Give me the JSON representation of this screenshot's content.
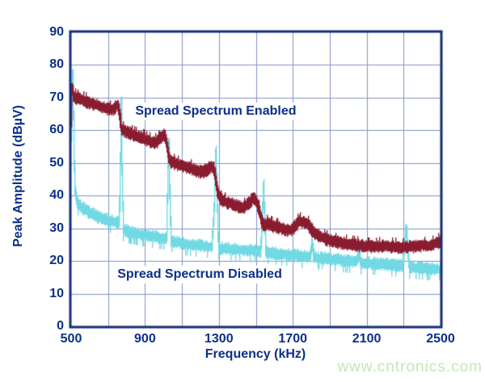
{
  "figure": {
    "watermark": {
      "text": "www.cntronics.com",
      "color": "#c3e6b3"
    }
  },
  "chart_data": {
    "type": "line",
    "title": "",
    "xlabel": "Frequency (kHz)",
    "ylabel": "Peak Amplitude (dBµV)",
    "xlim": [
      500,
      2500
    ],
    "ylim": [
      0,
      90
    ],
    "x_ticks": [
      500,
      900,
      1300,
      1700,
      2100,
      2500
    ],
    "y_ticks": [
      0,
      10,
      20,
      30,
      40,
      50,
      60,
      70,
      80,
      90
    ],
    "x_grid_step": 200,
    "y_grid_step": 10,
    "grid": true,
    "legend_position": "inline-annotations",
    "colors": {
      "background": "#ffffff",
      "axis_border": "#162d75",
      "gridline": "#8292c8",
      "tick_text": "#0c2f88"
    },
    "annotations": [
      {
        "text": "Spread Spectrum Enabled",
        "x_kHz": 1283,
        "y_dB": 65.8
      },
      {
        "text": "Spread Spectrum Disabled",
        "x_kHz": 1196,
        "y_dB": 15.8
      }
    ],
    "series": [
      {
        "name": "Spread Spectrum Enabled",
        "color": "#8a1c30",
        "band_half_dB": 1.15,
        "noise_dB": 1.0,
        "points": [
          [
            500,
            63
          ],
          [
            503,
            70.5
          ],
          [
            506,
            76.5
          ],
          [
            509,
            72
          ],
          [
            513,
            70.3
          ],
          [
            525,
            70
          ],
          [
            555,
            69.4
          ],
          [
            595,
            68.5
          ],
          [
            635,
            67.7
          ],
          [
            675,
            67
          ],
          [
            712,
            66.4
          ],
          [
            733,
            66.7
          ],
          [
            747,
            67.8
          ],
          [
            756,
            67.3
          ],
          [
            762,
            65.5
          ],
          [
            767,
            62.5
          ],
          [
            773,
            60.3
          ],
          [
            790,
            59.7
          ],
          [
            818,
            59.2
          ],
          [
            846,
            58.4
          ],
          [
            878,
            57.9
          ],
          [
            912,
            56.9
          ],
          [
            942,
            56.2
          ],
          [
            966,
            56.4
          ],
          [
            983,
            57.7
          ],
          [
            998,
            58.5
          ],
          [
            1008,
            58.1
          ],
          [
            1016,
            56.6
          ],
          [
            1023,
            53.8
          ],
          [
            1031,
            51.2
          ],
          [
            1042,
            50.3
          ],
          [
            1064,
            49.8
          ],
          [
            1100,
            49.2
          ],
          [
            1138,
            48.5
          ],
          [
            1176,
            47.7
          ],
          [
            1212,
            47.2
          ],
          [
            1238,
            48.1
          ],
          [
            1256,
            48.9
          ],
          [
            1270,
            48.5
          ],
          [
            1280,
            46.2
          ],
          [
            1288,
            42.8
          ],
          [
            1296,
            40.3
          ],
          [
            1308,
            38.9
          ],
          [
            1338,
            38.1
          ],
          [
            1378,
            37.3
          ],
          [
            1418,
            36.4
          ],
          [
            1443,
            36.6
          ],
          [
            1466,
            38.1
          ],
          [
            1486,
            39.2
          ],
          [
            1500,
            38.6
          ],
          [
            1511,
            37
          ],
          [
            1521,
            34.6
          ],
          [
            1533,
            32
          ],
          [
            1546,
            30.9
          ],
          [
            1563,
            31.5
          ],
          [
            1588,
            30.8
          ],
          [
            1622,
            30.2
          ],
          [
            1656,
            29.7
          ],
          [
            1690,
            29.4
          ],
          [
            1712,
            30.7
          ],
          [
            1736,
            32.1
          ],
          [
            1760,
            32
          ],
          [
            1780,
            31.3
          ],
          [
            1796,
            30.1
          ],
          [
            1814,
            28.7
          ],
          [
            1836,
            28
          ],
          [
            1862,
            27
          ],
          [
            1892,
            26.4
          ],
          [
            1928,
            25.9
          ],
          [
            1968,
            25.5
          ],
          [
            2008,
            25.1
          ],
          [
            2052,
            24.8
          ],
          [
            2098,
            24.5
          ],
          [
            2148,
            24.4
          ],
          [
            2198,
            24.7
          ],
          [
            2248,
            24.4
          ],
          [
            2298,
            24.1
          ],
          [
            2348,
            24.4
          ],
          [
            2398,
            24.8
          ],
          [
            2442,
            24.6
          ],
          [
            2472,
            25.4
          ],
          [
            2500,
            25.9
          ]
        ]
      },
      {
        "name": "Spread Spectrum Disabled",
        "color": "#70d9e3",
        "band_half_dB": 1.05,
        "noise_dB": 1.1,
        "points": [
          [
            500,
            58
          ],
          [
            504,
            68
          ],
          [
            508,
            79
          ],
          [
            512,
            70
          ],
          [
            516,
            52
          ],
          [
            521,
            42
          ],
          [
            528,
            39
          ],
          [
            540,
            37.5
          ],
          [
            565,
            36
          ],
          [
            600,
            34.8
          ],
          [
            645,
            33.4
          ],
          [
            690,
            32.6
          ],
          [
            730,
            32
          ],
          [
            758,
            31.6
          ],
          [
            765,
            42
          ],
          [
            771,
            70
          ],
          [
            777,
            42
          ],
          [
            784,
            29.6
          ],
          [
            805,
            29.1
          ],
          [
            850,
            28.5
          ],
          [
            900,
            27.9
          ],
          [
            950,
            27.4
          ],
          [
            1005,
            26.9
          ],
          [
            1016,
            26.8
          ],
          [
            1022,
            42
          ],
          [
            1028,
            61
          ],
          [
            1034,
            42
          ],
          [
            1041,
            26.1
          ],
          [
            1085,
            25.5
          ],
          [
            1145,
            25
          ],
          [
            1205,
            24.6
          ],
          [
            1262,
            24.3
          ],
          [
            1276,
            38
          ],
          [
            1284,
            54.5
          ],
          [
            1291,
            38
          ],
          [
            1298,
            23.9
          ],
          [
            1348,
            23.7
          ],
          [
            1415,
            23.4
          ],
          [
            1478,
            23.1
          ],
          [
            1526,
            22.9
          ],
          [
            1535,
            33
          ],
          [
            1541,
            44
          ],
          [
            1548,
            33
          ],
          [
            1555,
            22.5
          ],
          [
            1598,
            22.3
          ],
          [
            1645,
            22
          ],
          [
            1698,
            21.8
          ],
          [
            1748,
            21.5
          ],
          [
            1795,
            21.3
          ],
          [
            1805,
            26
          ],
          [
            1814,
            21.1
          ],
          [
            1852,
            20.9
          ],
          [
            1902,
            20.5
          ],
          [
            1958,
            20.2
          ],
          [
            2015,
            19.9
          ],
          [
            2048,
            19.8
          ],
          [
            2058,
            22.6
          ],
          [
            2068,
            19.5
          ],
          [
            2122,
            19.2
          ],
          [
            2180,
            19
          ],
          [
            2240,
            18.7
          ],
          [
            2295,
            18.5
          ],
          [
            2306,
            25
          ],
          [
            2314,
            31
          ],
          [
            2322,
            24
          ],
          [
            2331,
            18
          ],
          [
            2390,
            17.8
          ],
          [
            2450,
            17.5
          ],
          [
            2500,
            17.4
          ]
        ]
      }
    ]
  }
}
